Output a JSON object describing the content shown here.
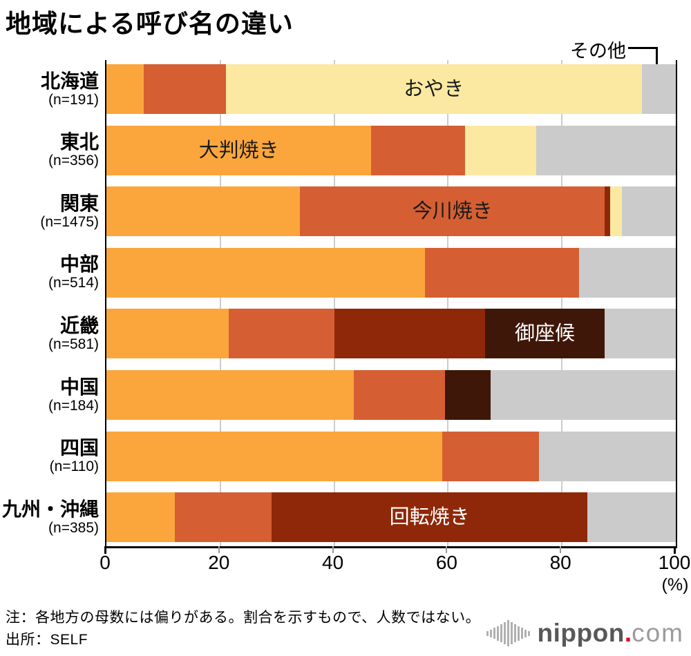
{
  "title": "地域による呼び名の違い",
  "annotation": {
    "label": "その他"
  },
  "axis": {
    "unit_label": "(%)"
  },
  "footer": {
    "note": "注：各地方の母数には偏りがある。割合を示すもので、人数ではない。",
    "source": "出所：SELF"
  },
  "logo": {
    "word": "nippon",
    "dot": ".",
    "tld": "com",
    "bar_heights": [
      7,
      11,
      16,
      21,
      26,
      32,
      38,
      32,
      26,
      21,
      16,
      11,
      7
    ],
    "bars_color": "#b0b0b0",
    "word_color": "#595757",
    "dot_color": "#e60012",
    "tld_color": "#9b9b9b"
  },
  "colors": {
    "background": "#ffffff",
    "grid": "#cccccc",
    "minor_tick": "#999999",
    "axis": "#000000"
  },
  "chart_data": {
    "type": "bar",
    "stacked": true,
    "orientation": "horizontal",
    "title": "地域による呼び名の違い",
    "xlabel": "(%)",
    "x_axis": {
      "min": 0,
      "max": 100,
      "ticks": [
        0,
        20,
        40,
        60,
        80,
        100
      ],
      "unit": "%"
    },
    "grid": true,
    "series": [
      {
        "name": "大判焼き",
        "color": "#FBA63C"
      },
      {
        "name": "今川焼き",
        "color": "#D55F32"
      },
      {
        "name": "回転焼き",
        "color": "#8E2808"
      },
      {
        "name": "おやき",
        "color": "#FBE9A2"
      },
      {
        "name": "御座候",
        "color": "#3F1708"
      },
      {
        "name": "その他",
        "color": "#CBCBCB"
      }
    ],
    "rows": [
      {
        "region": "北海道",
        "n_label": "(n=191)",
        "values": [
          6.5,
          14.5,
          0,
          73,
          0,
          6
        ],
        "bar_label": {
          "text": "おやき",
          "series_index": 3,
          "color": "#1a1a1a"
        }
      },
      {
        "region": "東北",
        "n_label": "(n=356)",
        "values": [
          46.5,
          16.5,
          0,
          12.5,
          0,
          24.5
        ],
        "bar_label": {
          "text": "大判焼き",
          "series_index": 0,
          "color": "#1a1a1a"
        }
      },
      {
        "region": "関東",
        "n_label": "(n=1475)",
        "values": [
          34,
          53.5,
          1,
          2,
          0,
          9.5
        ],
        "bar_label": {
          "text": "今川焼き",
          "series_index": 1,
          "color": "#1a1a1a"
        }
      },
      {
        "region": "中部",
        "n_label": "(n=514)",
        "values": [
          56,
          27,
          0,
          0,
          0,
          17
        ],
        "bar_label": null
      },
      {
        "region": "近畿",
        "n_label": "(n=581)",
        "values": [
          21.5,
          18.5,
          26.5,
          0,
          21,
          12.5
        ],
        "bar_label": {
          "text": "御座候",
          "series_index": 4,
          "color": "#ffffff"
        }
      },
      {
        "region": "中国",
        "n_label": "(n=184)",
        "values": [
          43.5,
          16,
          0,
          0,
          8,
          32.5
        ],
        "bar_label": null
      },
      {
        "region": "四国",
        "n_label": "(n=110)",
        "values": [
          59,
          17,
          0,
          0,
          0,
          24
        ],
        "bar_label": null
      },
      {
        "region": "九州・沖縄",
        "n_label": "(n=385)",
        "values": [
          12,
          17,
          55.5,
          0,
          0,
          15.5
        ],
        "bar_label": {
          "text": "回転焼き",
          "series_index": 2,
          "color": "#ffffff"
        }
      }
    ]
  }
}
